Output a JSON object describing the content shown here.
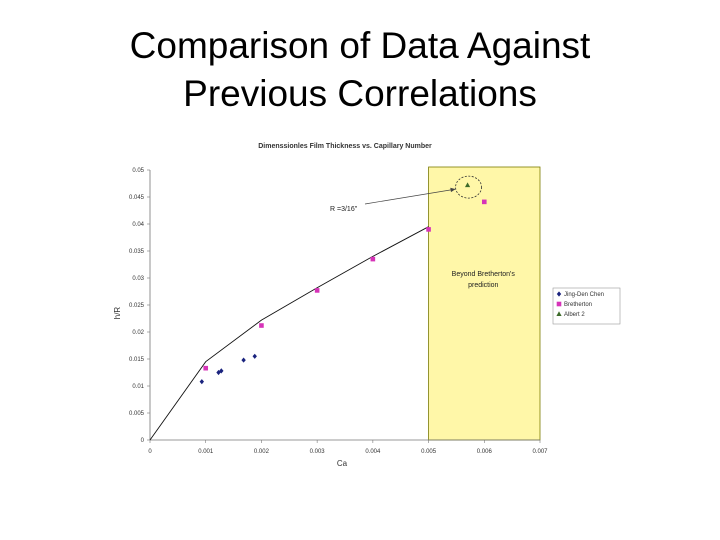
{
  "slide": {
    "title_line1": "Comparison of Data Against",
    "title_line2": "Previous Correlations"
  },
  "chart_data": {
    "type": "scatter",
    "title": "Dimenssionles Film Thickness vs. Capillary Number",
    "xlabel": "Ca",
    "ylabel": "h/R",
    "xlim": [
      0,
      0.007
    ],
    "ylim": [
      0,
      0.05
    ],
    "x_ticks": [
      "0",
      "0.001",
      "0.002",
      "0.003",
      "0.004",
      "0.005",
      "0.006",
      "0.007"
    ],
    "y_ticks": [
      "0",
      "0.005",
      "0.01",
      "0.015",
      "0.02",
      "0.025",
      "0.03",
      "0.035",
      "0.04",
      "0.045",
      "0.05"
    ],
    "grid": false,
    "legend_position": "right",
    "series": [
      {
        "name": "Jing-Den Chen",
        "marker": "diamond",
        "color": "#1a237e",
        "points": [
          [
            0.00093,
            0.0108
          ],
          [
            0.00123,
            0.0125
          ],
          [
            0.00128,
            0.0128
          ],
          [
            0.00168,
            0.0148
          ],
          [
            0.00188,
            0.0155
          ]
        ]
      },
      {
        "name": "Bretherton",
        "marker": "square",
        "color": "#d633b8",
        "points": [
          [
            0.001,
            0.0133
          ],
          [
            0.002,
            0.0212
          ],
          [
            0.003,
            0.0277
          ],
          [
            0.004,
            0.0335
          ],
          [
            0.005,
            0.039
          ],
          [
            0.006,
            0.0441
          ]
        ]
      },
      {
        "name": "Albert 2",
        "marker": "triangle",
        "color": "#3d6b2a",
        "points": [
          [
            0.0057,
            0.0472
          ]
        ]
      }
    ],
    "fit_line": {
      "points": [
        [
          0.0,
          0.0
        ],
        [
          0.001,
          0.0145
        ],
        [
          0.002,
          0.0222
        ],
        [
          0.003,
          0.0282
        ],
        [
          0.004,
          0.034
        ],
        [
          0.005,
          0.0395
        ]
      ]
    },
    "highlight_region": {
      "x_range": [
        0.005,
        0.007
      ],
      "color": "#fff7a8",
      "border": "#7a7a00",
      "label_line1": "Beyond Bretherton's",
      "label_line2": "prediction"
    },
    "annotation": {
      "text": "R =3/16\"",
      "target": [
        0.0057,
        0.0472
      ]
    }
  }
}
